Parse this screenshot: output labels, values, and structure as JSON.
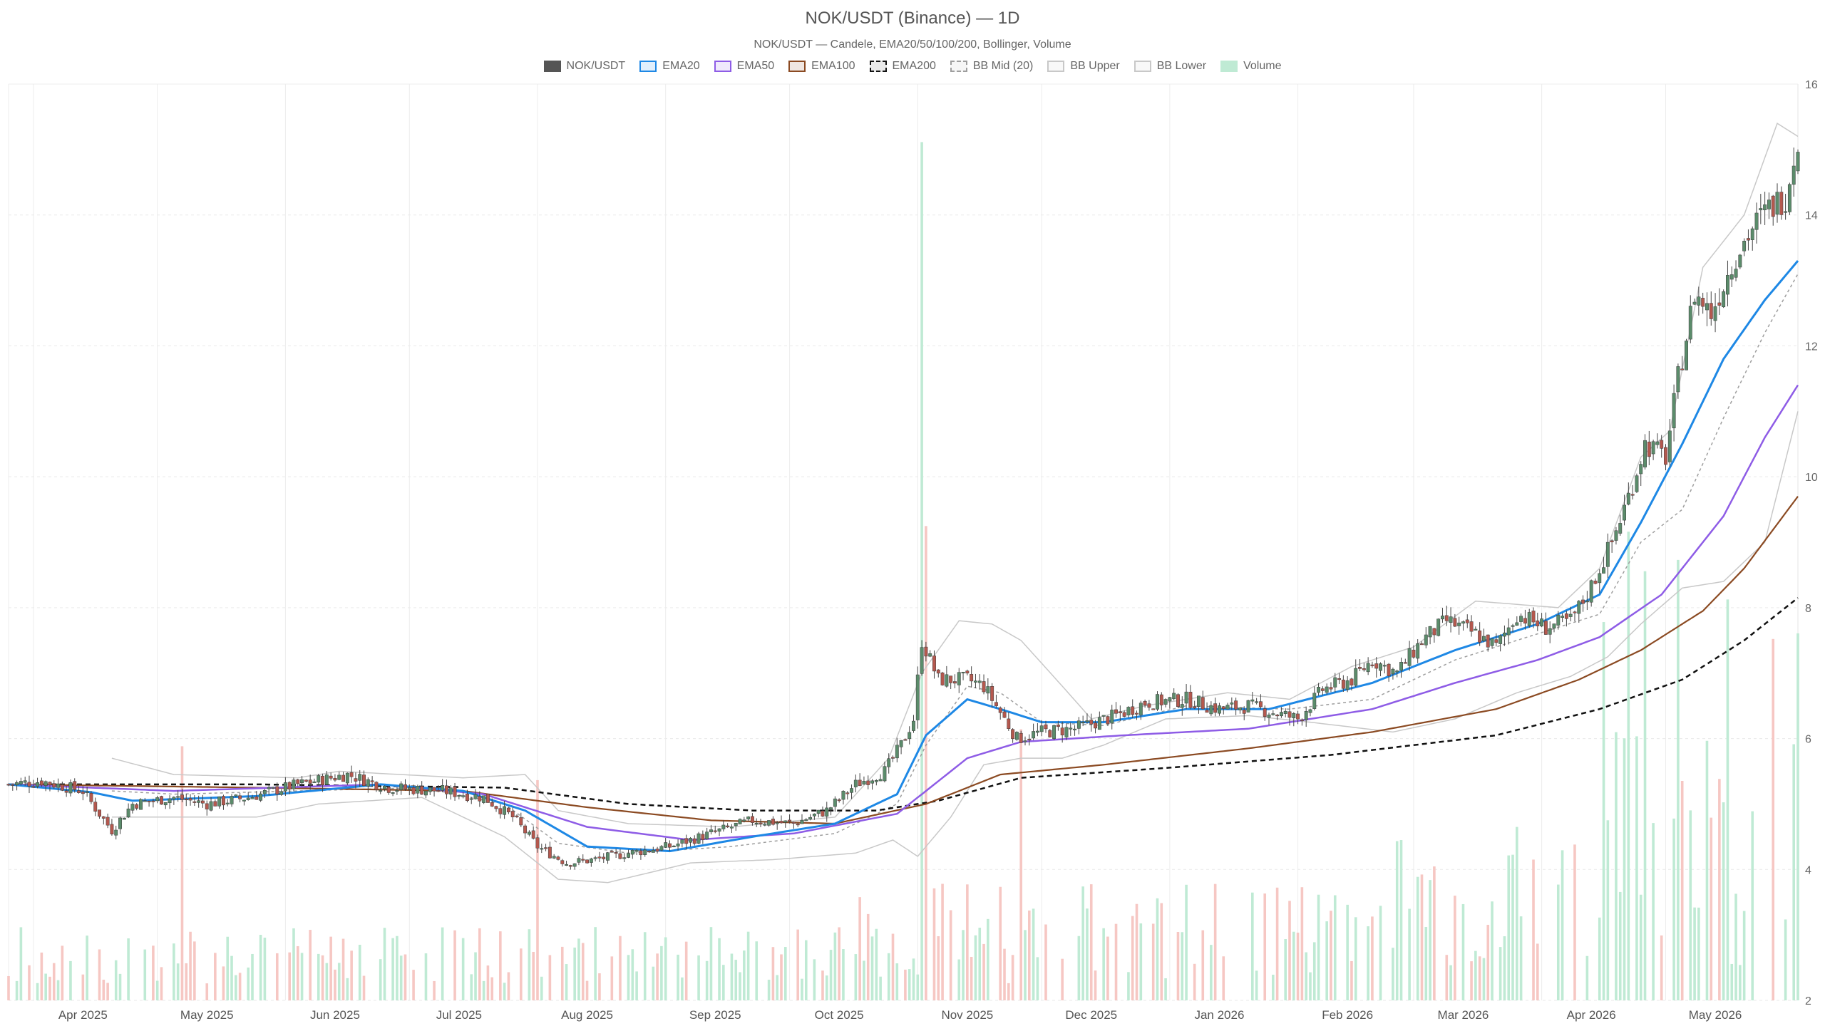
{
  "chart_data": {
    "type": "candlestick",
    "title": "NOK/USDT (Binance) — 1D",
    "subtitle": "NOK/USDT — Candele, EMA20/50/100/200, Bollinger, Volume",
    "legend": [
      {
        "name": "NOK/USDT",
        "color": "#555555",
        "style": "solid-fill"
      },
      {
        "name": "EMA20",
        "color": "#1e88e5",
        "style": "box"
      },
      {
        "name": "EMA50",
        "color": "#8e5ce6",
        "style": "box"
      },
      {
        "name": "EMA100",
        "color": "#8b4a22",
        "style": "box"
      },
      {
        "name": "EMA200",
        "color": "#111111",
        "style": "dashed-box"
      },
      {
        "name": "BB Mid (20)",
        "color": "#9e9e9e",
        "style": "dashed-box"
      },
      {
        "name": "BB Upper",
        "color": "#c8c8c8",
        "style": "box"
      },
      {
        "name": "BB Lower",
        "color": "#c8c8c8",
        "style": "box"
      },
      {
        "name": "Volume",
        "color": "#bfead4",
        "style": "fill"
      }
    ],
    "x_ticks": [
      "Apr 2025",
      "May 2025",
      "Jun 2025",
      "Jul 2025",
      "Aug 2025",
      "Sep 2025",
      "Oct 2025",
      "Nov 2025",
      "Dec 2025",
      "Jan 2026",
      "Feb 2026",
      "Mar 2026",
      "Apr 2026",
      "May 2026"
    ],
    "x_tick_days": [
      18,
      48,
      79,
      109,
      140,
      171,
      201,
      232,
      262,
      293,
      324,
      352,
      383,
      413
    ],
    "y_ticks": [
      2,
      4,
      6,
      8,
      10,
      12,
      14,
      16
    ],
    "ylim": [
      2,
      16
    ],
    "x_range_days": [
      0,
      433
    ],
    "x_start": "2025-03-14",
    "grid": true,
    "colors": {
      "up": "#5b8c6b",
      "down": "#b5584e",
      "vol_up": "#bfead4",
      "vol_down": "#f6c7c3"
    },
    "price_anchors": [
      [
        0,
        5.3
      ],
      [
        8,
        5.35
      ],
      [
        18,
        5.2
      ],
      [
        22,
        4.85
      ],
      [
        25,
        4.6
      ],
      [
        30,
        5.0
      ],
      [
        40,
        5.1
      ],
      [
        48,
        5.0
      ],
      [
        58,
        5.1
      ],
      [
        70,
        5.3
      ],
      [
        82,
        5.45
      ],
      [
        92,
        5.25
      ],
      [
        105,
        5.2
      ],
      [
        115,
        5.1
      ],
      [
        122,
        4.8
      ],
      [
        128,
        4.35
      ],
      [
        135,
        4.1
      ],
      [
        142,
        4.15
      ],
      [
        150,
        4.25
      ],
      [
        160,
        4.35
      ],
      [
        170,
        4.55
      ],
      [
        180,
        4.75
      ],
      [
        190,
        4.7
      ],
      [
        198,
        4.9
      ],
      [
        205,
        5.3
      ],
      [
        212,
        5.5
      ],
      [
        216,
        5.9
      ],
      [
        219,
        6.3
      ],
      [
        221,
        7.5
      ],
      [
        225,
        6.9
      ],
      [
        232,
        6.9
      ],
      [
        236,
        6.8
      ],
      [
        240,
        6.4
      ],
      [
        244,
        6.0
      ],
      [
        250,
        6.1
      ],
      [
        258,
        6.15
      ],
      [
        268,
        6.35
      ],
      [
        275,
        6.55
      ],
      [
        285,
        6.6
      ],
      [
        293,
        6.45
      ],
      [
        300,
        6.5
      ],
      [
        306,
        6.4
      ],
      [
        312,
        6.3
      ],
      [
        318,
        6.75
      ],
      [
        325,
        6.9
      ],
      [
        330,
        7.2
      ],
      [
        336,
        7.0
      ],
      [
        342,
        7.5
      ],
      [
        348,
        7.8
      ],
      [
        355,
        7.6
      ],
      [
        360,
        7.4
      ],
      [
        365,
        7.9
      ],
      [
        372,
        7.7
      ],
      [
        378,
        7.8
      ],
      [
        382,
        8.2
      ],
      [
        388,
        9.0
      ],
      [
        392,
        9.7
      ],
      [
        396,
        10.5
      ],
      [
        401,
        10.3
      ],
      [
        404,
        11.5
      ],
      [
        408,
        12.8
      ],
      [
        412,
        12.5
      ],
      [
        418,
        13.4
      ],
      [
        422,
        13.8
      ],
      [
        426,
        14.1
      ],
      [
        430,
        14.3
      ],
      [
        433,
        15.2
      ]
    ],
    "ema20_anchors": [
      [
        0,
        5.3
      ],
      [
        20,
        5.18
      ],
      [
        30,
        5.05
      ],
      [
        60,
        5.12
      ],
      [
        90,
        5.3
      ],
      [
        110,
        5.2
      ],
      [
        125,
        4.9
      ],
      [
        140,
        4.35
      ],
      [
        160,
        4.28
      ],
      [
        180,
        4.5
      ],
      [
        200,
        4.7
      ],
      [
        215,
        5.15
      ],
      [
        222,
        6.05
      ],
      [
        232,
        6.6
      ],
      [
        240,
        6.45
      ],
      [
        250,
        6.25
      ],
      [
        265,
        6.25
      ],
      [
        285,
        6.45
      ],
      [
        305,
        6.45
      ],
      [
        330,
        6.85
      ],
      [
        350,
        7.35
      ],
      [
        370,
        7.75
      ],
      [
        385,
        8.2
      ],
      [
        395,
        9.3
      ],
      [
        405,
        10.5
      ],
      [
        415,
        11.8
      ],
      [
        425,
        12.7
      ],
      [
        433,
        13.3
      ]
    ],
    "ema50_anchors": [
      [
        0,
        5.3
      ],
      [
        40,
        5.2
      ],
      [
        90,
        5.3
      ],
      [
        115,
        5.15
      ],
      [
        140,
        4.65
      ],
      [
        165,
        4.45
      ],
      [
        190,
        4.55
      ],
      [
        215,
        4.85
      ],
      [
        232,
        5.7
      ],
      [
        245,
        5.95
      ],
      [
        270,
        6.05
      ],
      [
        300,
        6.15
      ],
      [
        330,
        6.45
      ],
      [
        350,
        6.85
      ],
      [
        370,
        7.2
      ],
      [
        385,
        7.55
      ],
      [
        400,
        8.2
      ],
      [
        415,
        9.4
      ],
      [
        425,
        10.6
      ],
      [
        433,
        11.4
      ]
    ],
    "ema100_anchors": [
      [
        0,
        5.3
      ],
      [
        60,
        5.25
      ],
      [
        110,
        5.2
      ],
      [
        140,
        4.95
      ],
      [
        170,
        4.75
      ],
      [
        200,
        4.7
      ],
      [
        222,
        5.0
      ],
      [
        240,
        5.45
      ],
      [
        265,
        5.6
      ],
      [
        300,
        5.85
      ],
      [
        330,
        6.1
      ],
      [
        360,
        6.45
      ],
      [
        380,
        6.9
      ],
      [
        395,
        7.35
      ],
      [
        410,
        7.95
      ],
      [
        420,
        8.6
      ],
      [
        433,
        9.7
      ]
    ],
    "ema200_anchors": [
      [
        0,
        5.3
      ],
      [
        60,
        5.3
      ],
      [
        120,
        5.25
      ],
      [
        150,
        5.0
      ],
      [
        180,
        4.9
      ],
      [
        210,
        4.9
      ],
      [
        225,
        5.05
      ],
      [
        245,
        5.4
      ],
      [
        280,
        5.55
      ],
      [
        320,
        5.75
      ],
      [
        360,
        6.05
      ],
      [
        385,
        6.45
      ],
      [
        405,
        6.9
      ],
      [
        420,
        7.5
      ],
      [
        433,
        8.15
      ]
    ],
    "bb_upper_anchors": [
      [
        25,
        5.7
      ],
      [
        40,
        5.45
      ],
      [
        70,
        5.4
      ],
      [
        80,
        5.5
      ],
      [
        110,
        5.4
      ],
      [
        125,
        5.45
      ],
      [
        133,
        4.9
      ],
      [
        150,
        4.7
      ],
      [
        175,
        4.65
      ],
      [
        200,
        4.8
      ],
      [
        213,
        5.7
      ],
      [
        221,
        7.0
      ],
      [
        230,
        7.8
      ],
      [
        238,
        7.75
      ],
      [
        245,
        7.5
      ],
      [
        255,
        6.8
      ],
      [
        262,
        6.3
      ],
      [
        275,
        6.5
      ],
      [
        295,
        6.7
      ],
      [
        310,
        6.6
      ],
      [
        325,
        7.1
      ],
      [
        340,
        7.4
      ],
      [
        355,
        8.1
      ],
      [
        375,
        8.0
      ],
      [
        385,
        8.6
      ],
      [
        395,
        10.3
      ],
      [
        402,
        10.7
      ],
      [
        410,
        13.2
      ],
      [
        420,
        14.0
      ],
      [
        428,
        15.4
      ],
      [
        433,
        15.2
      ]
    ],
    "bb_lower_anchors": [
      [
        25,
        4.8
      ],
      [
        40,
        4.8
      ],
      [
        60,
        4.8
      ],
      [
        75,
        5.0
      ],
      [
        100,
        5.1
      ],
      [
        120,
        4.5
      ],
      [
        133,
        3.85
      ],
      [
        145,
        3.8
      ],
      [
        165,
        4.1
      ],
      [
        185,
        4.15
      ],
      [
        205,
        4.25
      ],
      [
        214,
        4.45
      ],
      [
        220,
        4.2
      ],
      [
        228,
        4.8
      ],
      [
        236,
        5.6
      ],
      [
        245,
        5.7
      ],
      [
        255,
        5.7
      ],
      [
        265,
        5.9
      ],
      [
        280,
        6.3
      ],
      [
        300,
        6.35
      ],
      [
        315,
        6.25
      ],
      [
        335,
        6.1
      ],
      [
        350,
        6.3
      ],
      [
        365,
        6.7
      ],
      [
        378,
        6.95
      ],
      [
        387,
        7.25
      ],
      [
        395,
        7.75
      ],
      [
        405,
        8.3
      ],
      [
        415,
        8.4
      ],
      [
        425,
        9.0
      ],
      [
        433,
        11.0
      ]
    ],
    "bb_mid_anchors": [
      [
        25,
        5.2
      ],
      [
        40,
        5.15
      ],
      [
        70,
        5.2
      ],
      [
        100,
        5.25
      ],
      [
        120,
        5.0
      ],
      [
        133,
        4.4
      ],
      [
        150,
        4.25
      ],
      [
        175,
        4.35
      ],
      [
        200,
        4.55
      ],
      [
        215,
        5.0
      ],
      [
        222,
        5.9
      ],
      [
        232,
        6.8
      ],
      [
        240,
        6.7
      ],
      [
        250,
        6.25
      ],
      [
        265,
        6.2
      ],
      [
        285,
        6.5
      ],
      [
        310,
        6.45
      ],
      [
        330,
        6.6
      ],
      [
        350,
        7.2
      ],
      [
        370,
        7.6
      ],
      [
        385,
        7.9
      ],
      [
        395,
        9.0
      ],
      [
        405,
        9.5
      ],
      [
        415,
        10.9
      ],
      [
        425,
        12.2
      ],
      [
        433,
        13.1
      ]
    ],
    "volume_scale_max": 15.3,
    "volume_spikes": [
      [
        221,
        15.2
      ],
      [
        222,
        8.4
      ],
      [
        245,
        4.8
      ],
      [
        128,
        3.9
      ],
      [
        42,
        4.5
      ],
      [
        386,
        6.7
      ],
      [
        392,
        8.3
      ],
      [
        396,
        7.6
      ],
      [
        404,
        7.8
      ],
      [
        416,
        7.1
      ],
      [
        427,
        6.4
      ],
      [
        433,
        6.5
      ]
    ]
  }
}
